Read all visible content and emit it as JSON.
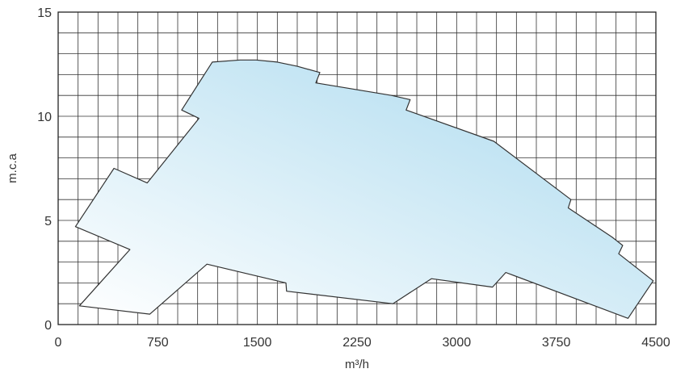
{
  "chart_data": {
    "type": "area",
    "title": "",
    "xlabel": "m³/h",
    "ylabel": "m.c.a",
    "xlim": [
      0,
      4500
    ],
    "ylim": [
      0,
      15
    ],
    "x_ticks": [
      "0",
      "750",
      "1500",
      "2250",
      "3000",
      "3750",
      "4500"
    ],
    "y_ticks": [
      "0",
      "5",
      "10",
      "15"
    ],
    "grid": true,
    "grid_step_x": 150,
    "grid_step_y": 1,
    "envelope": {
      "x": [
        160,
        690,
        1120,
        1715,
        1720,
        2520,
        2810,
        3270,
        3370,
        4290,
        4480,
        4220,
        4250,
        4170,
        3840,
        3860,
        3280,
        2620,
        2650,
        2510,
        1940,
        1970,
        1800,
        1650,
        1490,
        1370,
        1160,
        930,
        1060,
        670,
        420,
        130,
        540
      ],
      "y": [
        0.9,
        0.5,
        2.9,
        2.0,
        1.6,
        1.0,
        2.2,
        1.8,
        2.5,
        0.3,
        2.1,
        3.4,
        3.8,
        4.2,
        5.6,
        6.0,
        8.8,
        10.3,
        10.8,
        11.0,
        11.6,
        12.1,
        12.4,
        12.6,
        12.7,
        12.7,
        12.6,
        10.3,
        9.9,
        6.8,
        7.5,
        4.7,
        3.6
      ]
    },
    "colors": {
      "fill_start": "#ffffff",
      "fill_end": "#a9d9ee",
      "outline": "#333333",
      "grid": "#333333"
    }
  }
}
